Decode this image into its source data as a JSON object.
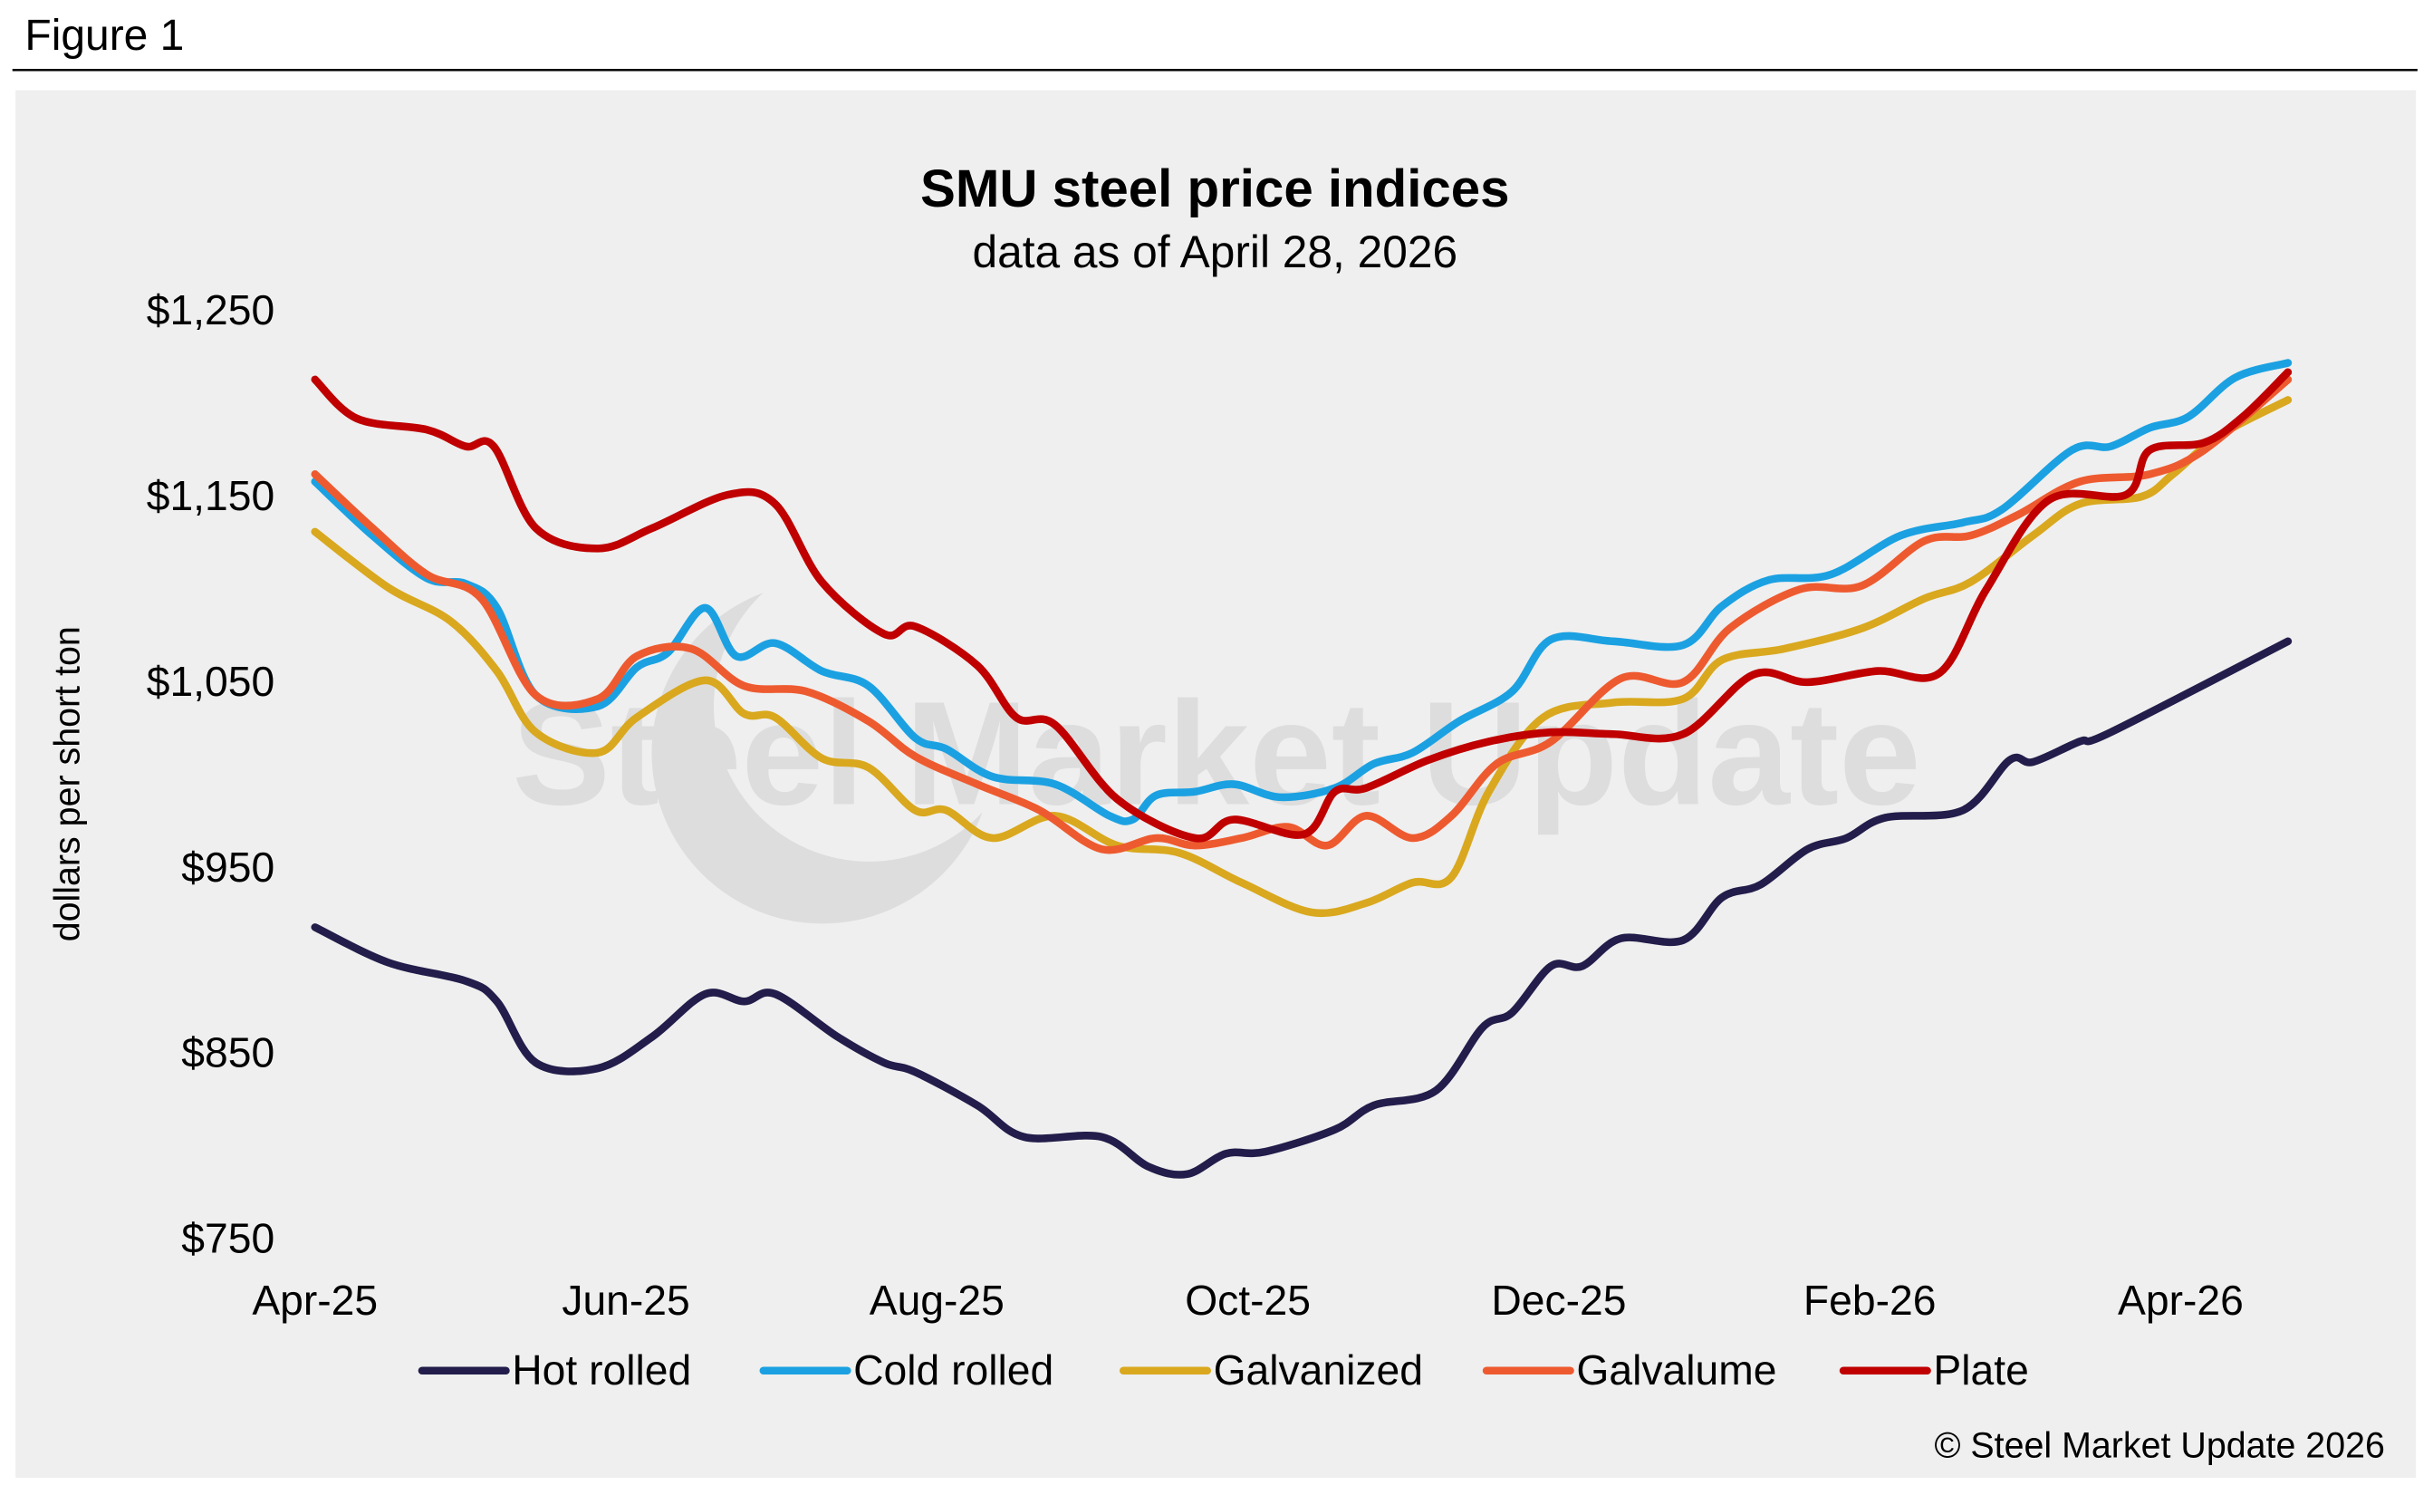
{
  "figure_label": "Figure 1",
  "watermark": "Steel Market Update",
  "copyright": "© Steel Market Update 2026",
  "chart_data": {
    "type": "line",
    "title": "SMU steel price indices",
    "subtitle": "data as of April 28, 2026",
    "xlabel": "",
    "ylabel": "dollars per short ton",
    "x_unit": "months since Apr-25",
    "xlim": [
      0,
      12.7
    ],
    "ylim": [
      750,
      1250
    ],
    "y_ticks": [
      1250,
      1150,
      1050,
      950,
      850,
      750
    ],
    "y_tick_labels": [
      "$1,250",
      "$1,150",
      "$1,050",
      "$950",
      "$850",
      "$750"
    ],
    "x_ticks": [
      0,
      2,
      4,
      6,
      8,
      10,
      12
    ],
    "x_tick_labels": [
      "Apr-25",
      "Jun-25",
      "Aug-25",
      "Oct-25",
      "Dec-25",
      "Feb-26",
      "Apr-26"
    ],
    "grid": false,
    "legend_position": "bottom",
    "series": [
      {
        "name": "Hot rolled",
        "color": "#221d4a",
        "points": [
          [
            0,
            917
          ],
          [
            0.47,
            898
          ],
          [
            0.97,
            888
          ],
          [
            1.17,
            877
          ],
          [
            1.42,
            844
          ],
          [
            1.82,
            841
          ],
          [
            2.17,
            858
          ],
          [
            2.51,
            881
          ],
          [
            2.76,
            877
          ],
          [
            2.96,
            881
          ],
          [
            3.36,
            858
          ],
          [
            3.66,
            844
          ],
          [
            3.86,
            839
          ],
          [
            4.26,
            821
          ],
          [
            4.56,
            804
          ],
          [
            5.06,
            804
          ],
          [
            5.36,
            788
          ],
          [
            5.61,
            784
          ],
          [
            5.86,
            795
          ],
          [
            6.11,
            796
          ],
          [
            6.56,
            808
          ],
          [
            6.81,
            821
          ],
          [
            7.21,
            829
          ],
          [
            7.51,
            863
          ],
          [
            7.7,
            871
          ],
          [
            7.95,
            896
          ],
          [
            8.15,
            896
          ],
          [
            8.4,
            911
          ],
          [
            8.8,
            910
          ],
          [
            9.05,
            933
          ],
          [
            9.3,
            940
          ],
          [
            9.6,
            959
          ],
          [
            9.85,
            965
          ],
          [
            10.1,
            976
          ],
          [
            10.6,
            980
          ],
          [
            10.9,
            1007
          ],
          [
            11.05,
            1006
          ],
          [
            11.35,
            1017
          ],
          [
            11.55,
            1022
          ],
          [
            12.69,
            1071
          ]
        ]
      },
      {
        "name": "Cold rolled",
        "color": "#1ba1e2",
        "points": [
          [
            0,
            1157
          ],
          [
            0.37,
            1128
          ],
          [
            0.72,
            1105
          ],
          [
            0.97,
            1102
          ],
          [
            1.17,
            1089
          ],
          [
            1.42,
            1042
          ],
          [
            1.82,
            1036
          ],
          [
            2.07,
            1057
          ],
          [
            2.27,
            1065
          ],
          [
            2.51,
            1089
          ],
          [
            2.71,
            1063
          ],
          [
            2.96,
            1070
          ],
          [
            3.26,
            1055
          ],
          [
            3.56,
            1047
          ],
          [
            3.86,
            1019
          ],
          [
            4.06,
            1013
          ],
          [
            4.36,
            998
          ],
          [
            4.76,
            994
          ],
          [
            5.11,
            977
          ],
          [
            5.26,
            975
          ],
          [
            5.41,
            988
          ],
          [
            5.66,
            990
          ],
          [
            5.91,
            994
          ],
          [
            6.21,
            987
          ],
          [
            6.56,
            992
          ],
          [
            6.81,
            1005
          ],
          [
            7.06,
            1011
          ],
          [
            7.36,
            1028
          ],
          [
            7.7,
            1044
          ],
          [
            7.95,
            1072
          ],
          [
            8.35,
            1071
          ],
          [
            8.8,
            1069
          ],
          [
            9.05,
            1090
          ],
          [
            9.35,
            1104
          ],
          [
            9.75,
            1107
          ],
          [
            10.2,
            1128
          ],
          [
            10.6,
            1135
          ],
          [
            10.85,
            1142
          ],
          [
            11.3,
            1174
          ],
          [
            11.55,
            1176
          ],
          [
            11.8,
            1186
          ],
          [
            12.05,
            1192
          ],
          [
            12.35,
            1213
          ],
          [
            12.69,
            1221
          ]
        ]
      },
      {
        "name": "Galvanized",
        "color": "#d9a81e",
        "points": [
          [
            0,
            1130
          ],
          [
            0.47,
            1100
          ],
          [
            0.87,
            1082
          ],
          [
            1.17,
            1055
          ],
          [
            1.42,
            1022
          ],
          [
            1.82,
            1011
          ],
          [
            2.07,
            1030
          ],
          [
            2.51,
            1050
          ],
          [
            2.76,
            1032
          ],
          [
            2.96,
            1030
          ],
          [
            3.26,
            1008
          ],
          [
            3.56,
            1003
          ],
          [
            3.86,
            980
          ],
          [
            4.06,
            980
          ],
          [
            4.36,
            965
          ],
          [
            4.76,
            977
          ],
          [
            5.16,
            961
          ],
          [
            5.56,
            957
          ],
          [
            5.96,
            941
          ],
          [
            6.41,
            925
          ],
          [
            6.76,
            930
          ],
          [
            7.06,
            941
          ],
          [
            7.31,
            944
          ],
          [
            7.55,
            990
          ],
          [
            7.9,
            1030
          ],
          [
            8.35,
            1038
          ],
          [
            8.8,
            1040
          ],
          [
            9.05,
            1061
          ],
          [
            9.45,
            1067
          ],
          [
            9.95,
            1078
          ],
          [
            10.35,
            1094
          ],
          [
            10.65,
            1103
          ],
          [
            11.05,
            1128
          ],
          [
            11.35,
            1145
          ],
          [
            11.75,
            1149
          ],
          [
            11.95,
            1161
          ],
          [
            12.25,
            1182
          ],
          [
            12.69,
            1201
          ]
        ]
      },
      {
        "name": "Galvalume",
        "color": "#ee5a2f",
        "points": [
          [
            0,
            1161
          ],
          [
            0.37,
            1132
          ],
          [
            0.72,
            1107
          ],
          [
            1.07,
            1094
          ],
          [
            1.42,
            1042
          ],
          [
            1.82,
            1040
          ],
          [
            2.07,
            1063
          ],
          [
            2.42,
            1067
          ],
          [
            2.76,
            1047
          ],
          [
            3.16,
            1044
          ],
          [
            3.56,
            1028
          ],
          [
            3.86,
            1009
          ],
          [
            4.26,
            994
          ],
          [
            4.66,
            980
          ],
          [
            5.06,
            959
          ],
          [
            5.41,
            965
          ],
          [
            5.66,
            961
          ],
          [
            5.96,
            965
          ],
          [
            6.26,
            971
          ],
          [
            6.51,
            961
          ],
          [
            6.76,
            977
          ],
          [
            7.06,
            965
          ],
          [
            7.31,
            977
          ],
          [
            7.6,
            1005
          ],
          [
            7.95,
            1017
          ],
          [
            8.4,
            1051
          ],
          [
            8.8,
            1049
          ],
          [
            9.1,
            1078
          ],
          [
            9.55,
            1099
          ],
          [
            9.95,
            1101
          ],
          [
            10.35,
            1125
          ],
          [
            10.65,
            1128
          ],
          [
            10.95,
            1139
          ],
          [
            11.35,
            1157
          ],
          [
            11.8,
            1161
          ],
          [
            12.15,
            1174
          ],
          [
            12.69,
            1212
          ]
        ]
      },
      {
        "name": "Plate",
        "color": "#c00000",
        "points": [
          [
            0,
            1212
          ],
          [
            0.27,
            1191
          ],
          [
            0.72,
            1185
          ],
          [
            0.97,
            1176
          ],
          [
            1.15,
            1176
          ],
          [
            1.42,
            1132
          ],
          [
            1.82,
            1121
          ],
          [
            2.17,
            1132
          ],
          [
            2.66,
            1150
          ],
          [
            2.96,
            1145
          ],
          [
            3.26,
            1103
          ],
          [
            3.66,
            1075
          ],
          [
            3.86,
            1079
          ],
          [
            4.26,
            1058
          ],
          [
            4.51,
            1030
          ],
          [
            4.76,
            1026
          ],
          [
            5.16,
            986
          ],
          [
            5.66,
            965
          ],
          [
            5.91,
            975
          ],
          [
            6.36,
            967
          ],
          [
            6.56,
            990
          ],
          [
            6.76,
            992
          ],
          [
            7.16,
            1007
          ],
          [
            7.55,
            1017
          ],
          [
            7.95,
            1022
          ],
          [
            8.35,
            1021
          ],
          [
            8.8,
            1021
          ],
          [
            9.25,
            1053
          ],
          [
            9.6,
            1049
          ],
          [
            10.05,
            1055
          ],
          [
            10.45,
            1054
          ],
          [
            10.75,
            1099
          ],
          [
            11.15,
            1147
          ],
          [
            11.65,
            1150
          ],
          [
            11.8,
            1174
          ],
          [
            12.15,
            1178
          ],
          [
            12.4,
            1192
          ],
          [
            12.69,
            1216
          ]
        ]
      }
    ]
  }
}
